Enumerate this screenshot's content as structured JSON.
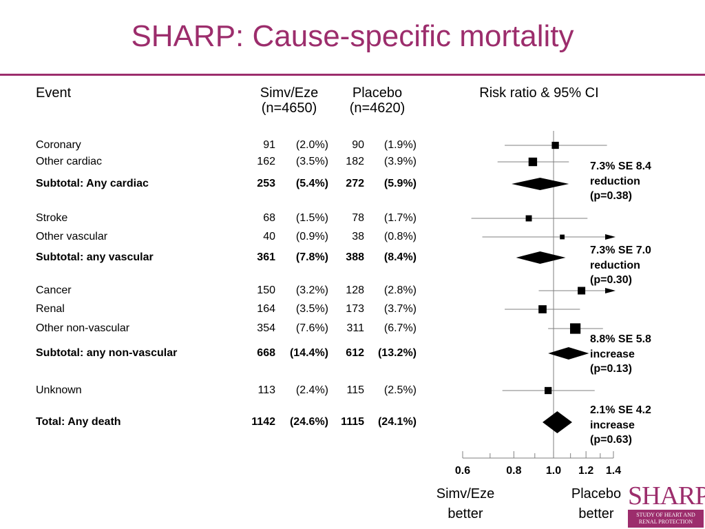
{
  "title": "SHARP: Cause-specific mortality",
  "headers": {
    "event": "Event",
    "group1": "Simv/Eze",
    "group1_n": "(n=4650)",
    "group2": "Placebo",
    "group2_n": "(n=4620)",
    "plot": "Risk ratio & 95% CI"
  },
  "rows": [
    {
      "event": "Coronary",
      "n1": "91",
      "p1": "(2.0%)",
      "n2": "90",
      "p2": "(1.9%)",
      "bold": false
    },
    {
      "event": "Other cardiac",
      "n1": "162",
      "p1": "(3.5%)",
      "n2": "182",
      "p2": "(3.9%)",
      "bold": false
    },
    {
      "event": "Subtotal: Any cardiac",
      "n1": "253",
      "p1": "(5.4%)",
      "n2": "272",
      "p2": "(5.9%)",
      "bold": true
    },
    {
      "event": "Stroke",
      "n1": "68",
      "p1": "(1.5%)",
      "n2": "78",
      "p2": "(1.7%)",
      "bold": false
    },
    {
      "event": "Other vascular",
      "n1": "40",
      "p1": "(0.9%)",
      "n2": "38",
      "p2": "(0.8%)",
      "bold": false
    },
    {
      "event": "Subtotal: any vascular",
      "n1": "361",
      "p1": "(7.8%)",
      "n2": "388",
      "p2": "(8.4%)",
      "bold": true
    },
    {
      "event": "Cancer",
      "n1": "150",
      "p1": "(3.2%)",
      "n2": "128",
      "p2": "(2.8%)",
      "bold": false
    },
    {
      "event": "Renal",
      "n1": "164",
      "p1": "(3.5%)",
      "n2": "173",
      "p2": "(3.7%)",
      "bold": false
    },
    {
      "event": "Other non-vascular",
      "n1": "354",
      "p1": "(7.6%)",
      "n2": "311",
      "p2": "(6.7%)",
      "bold": false
    },
    {
      "event": "Subtotal: any non-vascular",
      "n1": "668",
      "p1": "(14.4%)",
      "n2": "612",
      "p2": "(13.2%)",
      "bold": true
    },
    {
      "event": "Unknown",
      "n1": "113",
      "p1": "(2.4%)",
      "n2": "115",
      "p2": "(2.5%)",
      "bold": false
    },
    {
      "event": "Total: Any death",
      "n1": "1142",
      "p1": "(24.6%)",
      "n2": "1115",
      "p2": "(24.1%)",
      "bold": true
    }
  ],
  "notes": [
    {
      "line1": "7.3% SE 8.4",
      "line2": "reduction",
      "line3": "(p=0.38)"
    },
    {
      "line1": "7.3% SE 7.0",
      "line2": "reduction",
      "line3": "(p=0.30)"
    },
    {
      "line1": "8.8% SE 5.8",
      "line2": "increase",
      "line3": "(p=0.13)"
    },
    {
      "line1": "2.1% SE 4.2",
      "line2": "increase",
      "line3": "(p=0.63)"
    }
  ],
  "directions": {
    "left_line1": "Simv/Eze",
    "left_line2": "better",
    "right_line1": "Placebo",
    "right_line2": "better"
  },
  "logo": {
    "word": "SHARP",
    "sub1": "STUDY OF HEART AND",
    "sub2": "RENAL PROTECTION"
  },
  "colors": {
    "accent": "#9c2d6c",
    "marks": "#000000",
    "ci_line": "#7f7f7f"
  },
  "chart_data": {
    "type": "forest",
    "xlabel": "",
    "ticks": [
      0.6,
      0.8,
      1.0,
      1.2,
      1.4
    ],
    "tick_labels": [
      "0.6",
      "0.8",
      "1.0",
      "1.2",
      "1.4"
    ],
    "xlim": [
      0.6,
      1.4
    ],
    "log_scale": true,
    "reference_value": 1.0,
    "estimates": [
      {
        "label": "Coronary",
        "rr": 1.01,
        "ci_low": 0.76,
        "ci_high": 1.35,
        "marker": "square",
        "weight": 0.45
      },
      {
        "label": "Other cardiac",
        "rr": 0.89,
        "ci_low": 0.73,
        "ci_high": 1.09,
        "marker": "square",
        "weight": 0.6
      },
      {
        "label": "Subtotal: Any cardiac",
        "rr": 0.927,
        "ci_low": 0.79,
        "ci_high": 1.09,
        "marker": "diamond"
      },
      {
        "label": "Stroke",
        "rr": 0.87,
        "ci_low": 0.63,
        "ci_high": 1.21,
        "marker": "square",
        "weight": 0.35
      },
      {
        "label": "Other vascular",
        "rr": 1.05,
        "ci_low": 0.67,
        "ci_high": 1.4,
        "ci_high_truncated": true,
        "marker": "square",
        "weight": 0.2
      },
      {
        "label": "Subtotal: any vascular",
        "rr": 0.927,
        "ci_low": 0.81,
        "ci_high": 1.07,
        "marker": "diamond"
      },
      {
        "label": "Cancer",
        "rr": 1.17,
        "ci_low": 0.92,
        "ci_high": 1.4,
        "ci_high_truncated": true,
        "marker": "square",
        "weight": 0.5
      },
      {
        "label": "Renal",
        "rr": 0.94,
        "ci_low": 0.76,
        "ci_high": 1.16,
        "marker": "square",
        "weight": 0.55
      },
      {
        "label": "Other non-vascular",
        "rr": 1.13,
        "ci_low": 0.97,
        "ci_high": 1.32,
        "marker": "square",
        "weight": 0.8
      },
      {
        "label": "Subtotal: any non-vascular",
        "rr": 1.088,
        "ci_low": 0.97,
        "ci_high": 1.22,
        "marker": "diamond"
      },
      {
        "label": "Unknown",
        "rr": 0.97,
        "ci_low": 0.75,
        "ci_high": 1.26,
        "marker": "square",
        "weight": 0.45
      },
      {
        "label": "Total: Any death",
        "rr": 1.021,
        "ci_low": 0.94,
        "ci_high": 1.11,
        "marker": "diamond"
      }
    ]
  }
}
